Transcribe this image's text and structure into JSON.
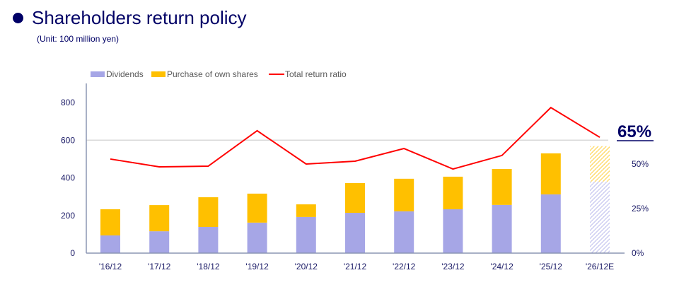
{
  "header": {
    "title": "Shareholders return policy",
    "unit": "(Unit: 100 million yen)"
  },
  "chart_data": {
    "type": "bar",
    "stacked": true,
    "title": "Shareholders return policy",
    "categories": [
      "'16/12",
      "'17/12",
      "'18/12",
      "'19/12",
      "'20/12",
      "'21/12",
      "'22/12",
      "'23/12",
      "'24/12",
      "'25/12",
      "'26/12E"
    ],
    "series": [
      {
        "name": "Dividends",
        "type": "bar",
        "axis": "left",
        "color": "#a6a6e6",
        "values": [
          94,
          116,
          139,
          162,
          192,
          214,
          222,
          233,
          256,
          312,
          380
        ]
      },
      {
        "name": "Purchase of own shares",
        "type": "bar",
        "axis": "left",
        "color": "#ffc000",
        "values": [
          139,
          139,
          158,
          154,
          67,
          158,
          173,
          173,
          191,
          218,
          188
        ]
      },
      {
        "name": "Total return ratio",
        "type": "line",
        "axis": "right",
        "color": "#ff0000",
        "values": [
          52.8,
          48.4,
          48.8,
          68.7,
          50,
          51.6,
          58.7,
          47.2,
          54.8,
          81.7,
          65
        ]
      }
    ],
    "forecast_category": "'26/12E",
    "left_axis": {
      "ylim": [
        0,
        900
      ],
      "ticks": [
        "0",
        "200",
        "400",
        "600",
        "800"
      ]
    },
    "right_axis": {
      "ylim": [
        0,
        85
      ],
      "ticks": [
        "0%",
        "25%",
        "50%"
      ]
    },
    "reference_line": 600,
    "annotation": "65%",
    "legend_position": "top-left"
  }
}
